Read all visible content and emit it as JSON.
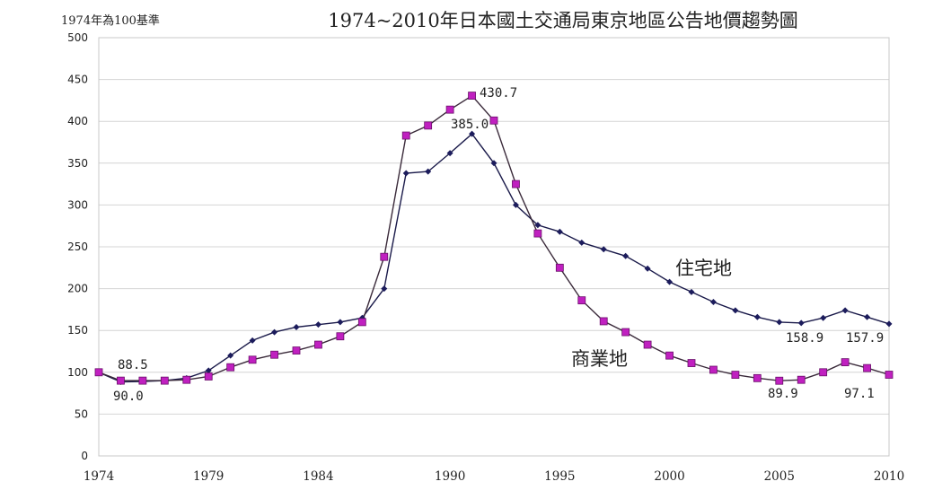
{
  "chart_data": {
    "type": "line",
    "title": "1974~2010年日本國土交通局東京地區公告地價趨勢圖",
    "subtitle": "1974年為100基準",
    "xlim": [
      1974,
      2010
    ],
    "ylim": [
      0,
      500
    ],
    "yticks": [
      0,
      50,
      100,
      150,
      200,
      250,
      300,
      350,
      400,
      450,
      500
    ],
    "xticks": [
      1974,
      1979,
      1984,
      1990,
      1995,
      2000,
      2005,
      2010
    ],
    "grid": "horizontal",
    "x": [
      1974,
      1975,
      1976,
      1977,
      1978,
      1979,
      1980,
      1981,
      1982,
      1983,
      1984,
      1985,
      1986,
      1987,
      1988,
      1989,
      1990,
      1991,
      1992,
      1993,
      1994,
      1995,
      1996,
      1997,
      1998,
      1999,
      2000,
      2001,
      2002,
      2003,
      2004,
      2005,
      2006,
      2007,
      2008,
      2009,
      2010
    ],
    "series": [
      {
        "name": "住宅地",
        "color": "#1c1c5c",
        "marker": "diamond",
        "values": [
          100,
          88.5,
          89,
          90,
          93,
          102,
          120,
          138,
          148,
          154,
          157,
          160,
          165,
          200,
          338,
          340,
          362,
          385,
          350,
          300,
          276,
          268,
          255,
          247,
          239,
          224,
          208,
          196,
          184,
          174,
          166,
          160,
          158.9,
          165,
          174,
          166,
          157.9
        ]
      },
      {
        "name": "商業地",
        "color": "#c020c0",
        "marker": "square",
        "values": [
          100,
          90,
          90,
          90,
          91,
          95,
          106,
          115,
          121,
          126,
          133,
          143,
          160,
          238,
          383,
          395,
          414,
          430.7,
          401,
          325,
          266,
          225,
          186,
          161,
          148,
          133,
          120,
          111,
          103,
          97,
          93,
          89.9,
          91,
          100,
          112,
          105,
          97.1
        ]
      }
    ],
    "annotations": [
      "88.5",
      "90.0",
      "430.7",
      "385.0",
      "158.9",
      "157.9",
      "89.9",
      "97.1"
    ]
  }
}
